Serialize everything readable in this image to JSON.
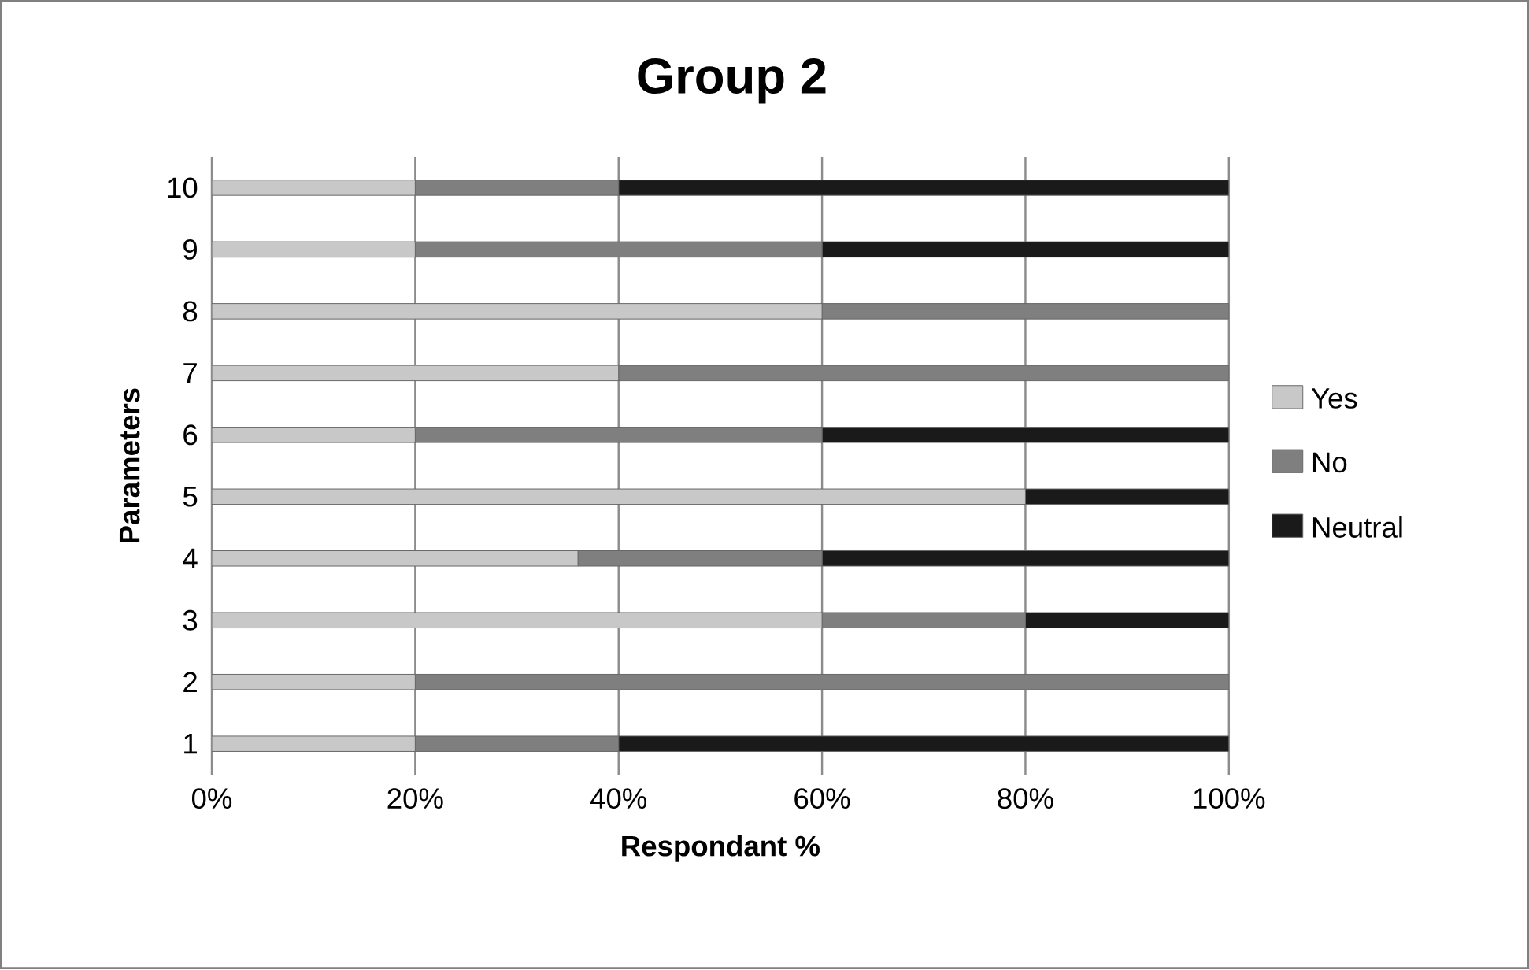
{
  "chart_data": {
    "type": "bar",
    "orientation": "horizontal",
    "stacked": true,
    "title": "Group 2",
    "xlabel": "Respondant %",
    "ylabel": "Parameters",
    "categories": [
      "10",
      "9",
      "8",
      "7",
      "6",
      "5",
      "4",
      "3",
      "2",
      "1"
    ],
    "series": [
      {
        "name": "Yes",
        "color": "#c8c8c8",
        "values": [
          20,
          20,
          60,
          40,
          20,
          80,
          36,
          60,
          20,
          20
        ]
      },
      {
        "name": "No",
        "color": "#7f7f7f",
        "values": [
          20,
          40,
          40,
          60,
          40,
          0,
          24,
          20,
          80,
          20
        ]
      },
      {
        "name": "Neutral",
        "color": "#1a1a1a",
        "values": [
          60,
          40,
          0,
          0,
          40,
          20,
          40,
          20,
          0,
          60
        ]
      }
    ],
    "xlim": [
      0,
      100
    ],
    "xticks": [
      {
        "value": 0,
        "label": "0%"
      },
      {
        "value": 20,
        "label": "20%"
      },
      {
        "value": 40,
        "label": "40%"
      },
      {
        "value": 60,
        "label": "60%"
      },
      {
        "value": 80,
        "label": "80%"
      },
      {
        "value": 100,
        "label": "100%"
      }
    ],
    "grid": "x",
    "legend": "right"
  }
}
